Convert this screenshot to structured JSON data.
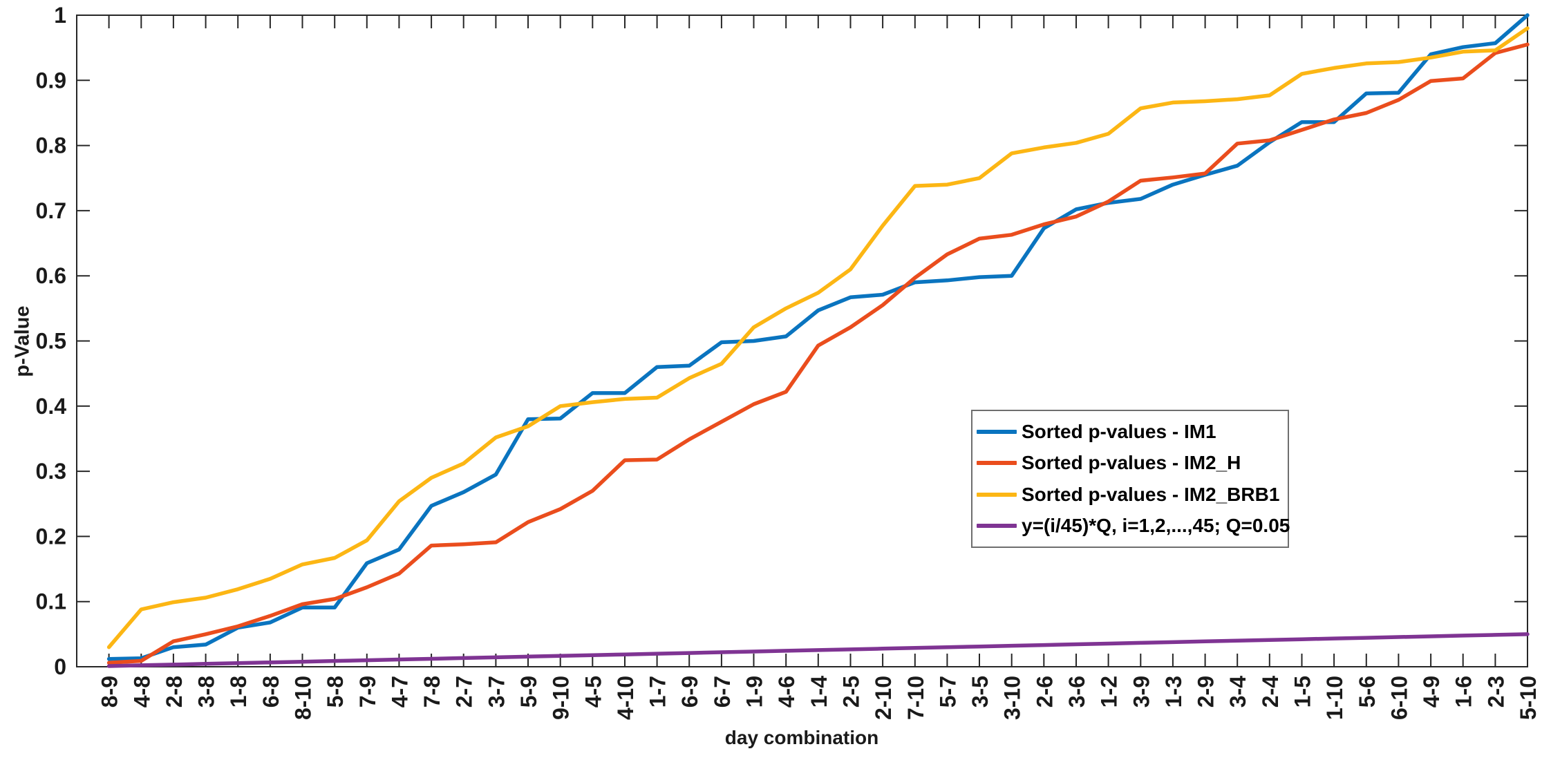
{
  "page": {
    "background": "#ffffff"
  },
  "chart_data": {
    "type": "line",
    "title": "",
    "xlabel": "day combination",
    "ylabel": "p-Value",
    "ylim": [
      0,
      1
    ],
    "grid": false,
    "legend_position": "middle-right",
    "axis_color": "#262626",
    "text_color": "#1a1a1a",
    "ytick_labels": [
      "0",
      "0.1",
      "0.2",
      "0.3",
      "0.4",
      "0.5",
      "0.6",
      "0.7",
      "0.8",
      "0.9",
      "1"
    ],
    "categories": [
      "8-9",
      "4-8",
      "2-8",
      "3-8",
      "1-8",
      "6-8",
      "8-10",
      "5-8",
      "7-9",
      "4-7",
      "7-8",
      "2-7",
      "3-7",
      "5-9",
      "9-10",
      "4-5",
      "4-10",
      "1-7",
      "6-9",
      "6-7",
      "1-9",
      "4-6",
      "1-4",
      "2-5",
      "2-10",
      "7-10",
      "5-7",
      "3-5",
      "3-10",
      "2-6",
      "3-6",
      "1-2",
      "3-9",
      "1-3",
      "2-9",
      "3-4",
      "2-4",
      "1-5",
      "1-10",
      "5-6",
      "6-10",
      "4-9",
      "1-6",
      "2-3",
      "5-10"
    ],
    "series": [
      {
        "name": "Sorted p-values - IM1",
        "color": "#0A74BF",
        "values": [
          0.012,
          0.013,
          0.03,
          0.034,
          0.06,
          0.068,
          0.091,
          0.091,
          0.159,
          0.18,
          0.247,
          0.268,
          0.295,
          0.38,
          0.381,
          0.42,
          0.42,
          0.46,
          0.462,
          0.498,
          0.5,
          0.507,
          0.547,
          0.567,
          0.571,
          0.59,
          0.593,
          0.598,
          0.6,
          0.673,
          0.702,
          0.712,
          0.718,
          0.74,
          0.755,
          0.769,
          0.805,
          0.836,
          0.836,
          0.88,
          0.881,
          0.94,
          0.951,
          0.957,
          1.0
        ]
      },
      {
        "name": "Sorted p-values - IM2_H",
        "color": "#EA4D1D",
        "values": [
          0.006,
          0.009,
          0.039,
          0.05,
          0.062,
          0.078,
          0.096,
          0.104,
          0.122,
          0.143,
          0.186,
          0.188,
          0.191,
          0.222,
          0.242,
          0.27,
          0.317,
          0.318,
          0.349,
          0.376,
          0.403,
          0.422,
          0.493,
          0.521,
          0.555,
          0.597,
          0.633,
          0.657,
          0.663,
          0.679,
          0.691,
          0.714,
          0.746,
          0.751,
          0.757,
          0.803,
          0.808,
          0.824,
          0.84,
          0.85,
          0.87,
          0.899,
          0.903,
          0.942,
          0.955
        ]
      },
      {
        "name": "Sorted p-values - IM2_BRB1",
        "color": "#FCB614",
        "values": [
          0.03,
          0.088,
          0.099,
          0.106,
          0.119,
          0.135,
          0.157,
          0.167,
          0.194,
          0.254,
          0.29,
          0.312,
          0.352,
          0.369,
          0.4,
          0.406,
          0.411,
          0.413,
          0.443,
          0.465,
          0.521,
          0.55,
          0.574,
          0.61,
          0.677,
          0.738,
          0.74,
          0.75,
          0.788,
          0.797,
          0.804,
          0.818,
          0.857,
          0.866,
          0.868,
          0.871,
          0.877,
          0.91,
          0.919,
          0.926,
          0.928,
          0.935,
          0.944,
          0.946,
          0.98
        ]
      },
      {
        "name": "y=(i/45)*Q, i=1,2,...,45; Q=0.05",
        "color": "#7F3493",
        "formula": {
          "expression": "y=(i/45)*Q",
          "Q": 0.05,
          "n": 45
        }
      }
    ]
  }
}
